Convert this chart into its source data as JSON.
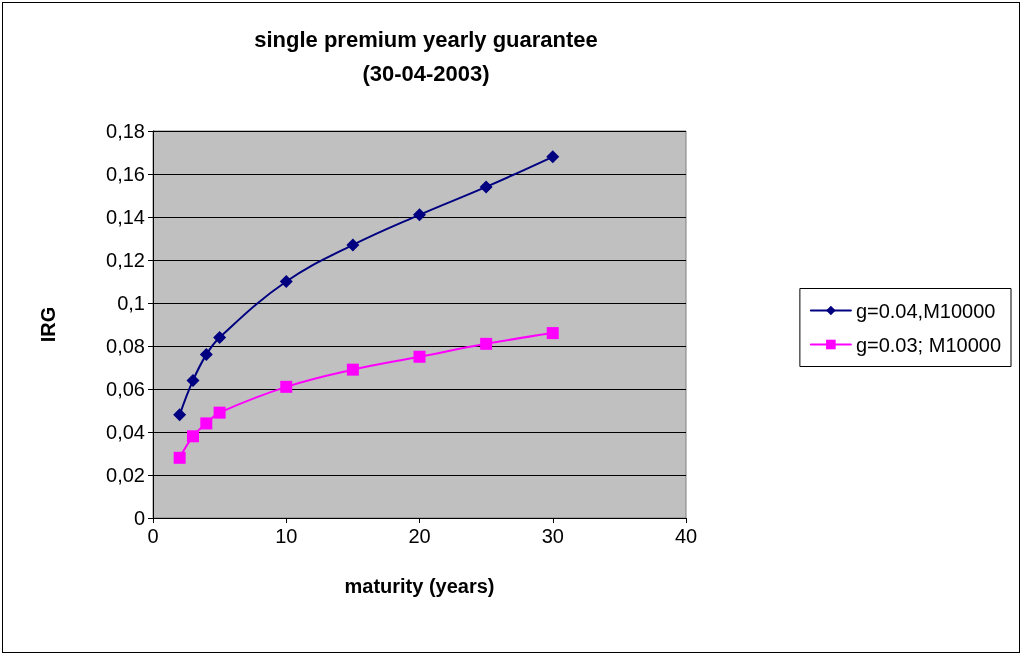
{
  "chart_data": {
    "type": "line",
    "title": "single premium yearly guarantee\n(30-04-2003)",
    "xlabel": "maturity (years)",
    "ylabel": "IRG",
    "xlim": [
      0,
      40
    ],
    "xticks": [
      0,
      10,
      20,
      30,
      40
    ],
    "ylim": [
      0,
      0.18
    ],
    "yticks": [
      0,
      {
        "value": 0.02,
        "label": "0,02"
      },
      {
        "value": 0.04,
        "label": "0,04"
      },
      {
        "value": 0.06,
        "label": "0,06"
      },
      {
        "value": 0.08,
        "label": "0,08"
      },
      {
        "value": 0.1,
        "label": "0,1"
      },
      {
        "value": 0.12,
        "label": "0,12"
      },
      {
        "value": 0.14,
        "label": "0,14"
      },
      {
        "value": 0.16,
        "label": "0,16"
      },
      {
        "value": 0.18,
        "label": "0,18"
      }
    ],
    "grid": "y",
    "legend": "right",
    "series": [
      {
        "name": "g=0.04,M10000",
        "color": "#000080",
        "marker": "diamond",
        "x": [
          2,
          3,
          4,
          5,
          10,
          15,
          20,
          25,
          30
        ],
        "values": [
          0.048,
          0.064,
          0.076,
          0.084,
          0.11,
          0.127,
          0.141,
          0.154,
          0.168
        ]
      },
      {
        "name": "g=0.03; M10000",
        "color": "#ff00ff",
        "marker": "square",
        "x": [
          2,
          3,
          4,
          5,
          10,
          15,
          20,
          25,
          30
        ],
        "values": [
          0.028,
          0.038,
          0.044,
          0.049,
          0.061,
          0.069,
          0.075,
          0.081,
          0.086
        ]
      }
    ]
  }
}
